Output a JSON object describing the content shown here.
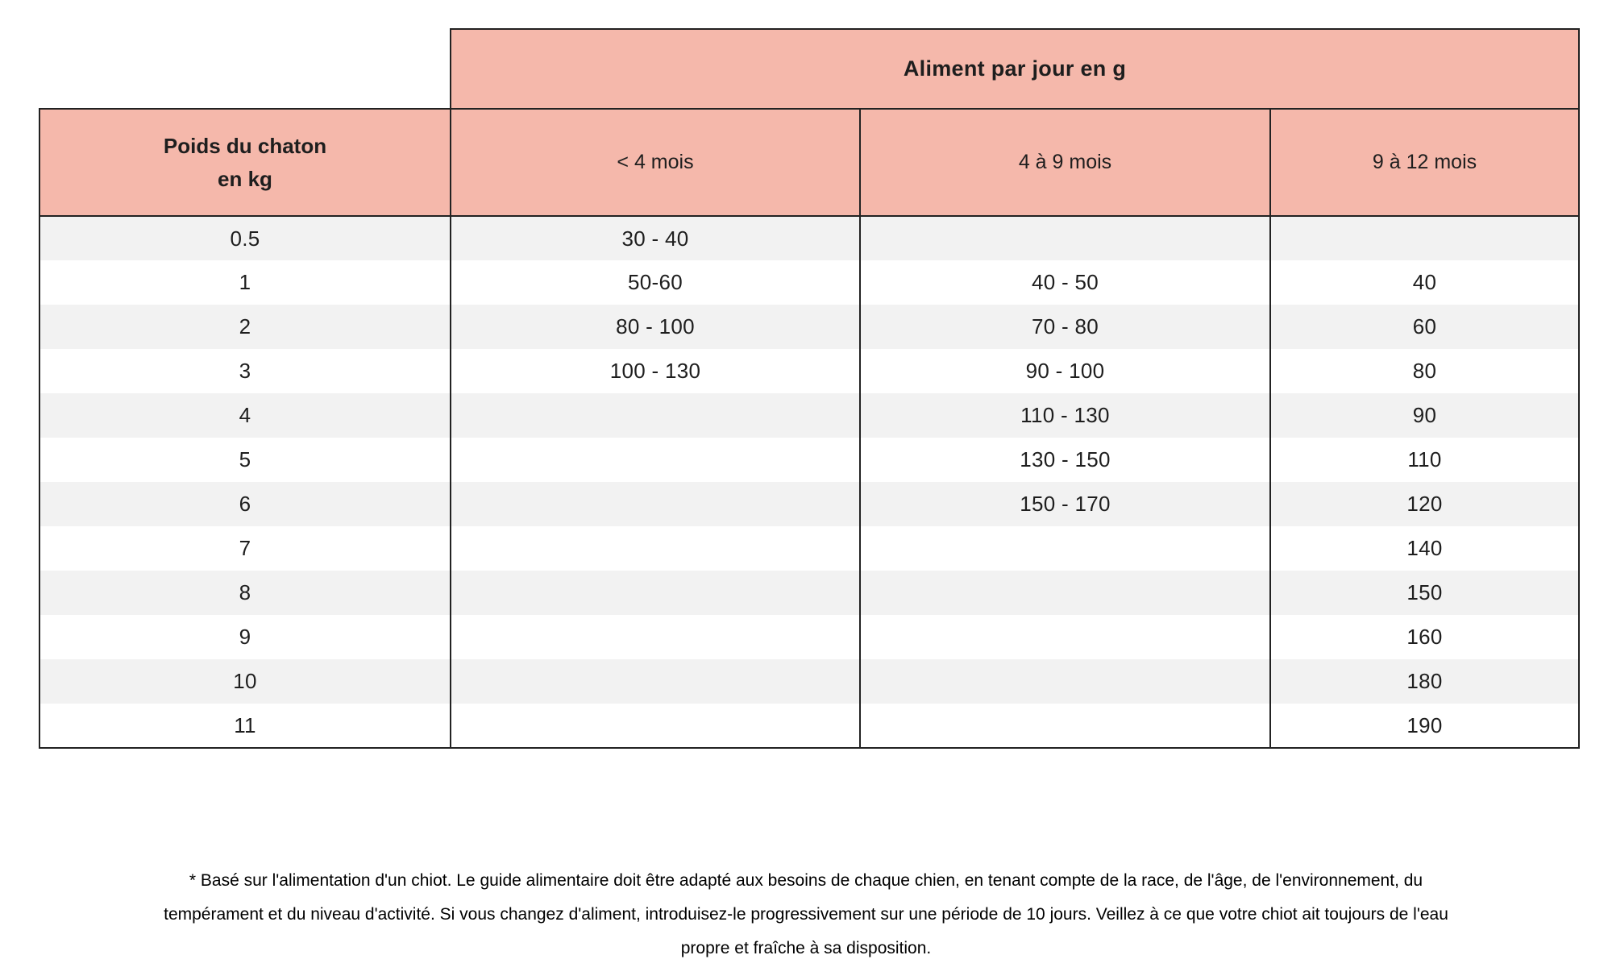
{
  "table": {
    "banner": "Aliment par jour en g",
    "weight_header": {
      "line1": "Poids du chaton",
      "line2": "en kg"
    },
    "columns": [
      "< 4 mois",
      "4 à 9 mois",
      "9 à 12 mois"
    ],
    "rows": [
      {
        "weight": "0.5",
        "m4": "30 - 40",
        "m4_9": "",
        "m9_12": ""
      },
      {
        "weight": "1",
        "m4": "50-60",
        "m4_9": "40 - 50",
        "m9_12": "40"
      },
      {
        "weight": "2",
        "m4": "80 - 100",
        "m4_9": "70 - 80",
        "m9_12": "60"
      },
      {
        "weight": "3",
        "m4": "100 - 130",
        "m4_9": "90 - 100",
        "m9_12": "80"
      },
      {
        "weight": "4",
        "m4": "",
        "m4_9": "110 - 130",
        "m9_12": "90"
      },
      {
        "weight": "5",
        "m4": "",
        "m4_9": "130 - 150",
        "m9_12": "110"
      },
      {
        "weight": "6",
        "m4": "",
        "m4_9": "150 - 170",
        "m9_12": "120"
      },
      {
        "weight": "7",
        "m4": "",
        "m4_9": "",
        "m9_12": "140"
      },
      {
        "weight": "8",
        "m4": "",
        "m4_9": "",
        "m9_12": "150"
      },
      {
        "weight": "9",
        "m4": "",
        "m4_9": "",
        "m9_12": "160"
      },
      {
        "weight": "10",
        "m4": "",
        "m4_9": "",
        "m9_12": "180"
      },
      {
        "weight": "11",
        "m4": "",
        "m4_9": "",
        "m9_12": "190"
      }
    ]
  },
  "footer": {
    "lines": [
      "* Basé sur l'alimentation d'un chiot. Le guide alimentaire doit être adapté aux besoins de chaque chien, en tenant compte de la race, de l'âge, de l'environnement, du",
      "tempérament et du niveau d'activité. Si vous changez d'aliment, introduisez-le progressivement sur une période de 10 jours. Veillez à ce que votre chiot ait toujours de l'eau",
      "propre et fraîche à sa disposition."
    ]
  },
  "colors": {
    "header_pink": "#f5b8ab",
    "row_stripe": "#f2f2f2",
    "border": "#222222"
  },
  "chart_data": {
    "type": "table",
    "title": "Aliment par jour en g",
    "columns": [
      "Poids du chaton en kg",
      "< 4 mois",
      "4 à 9 mois",
      "9 à 12 mois"
    ],
    "rows": [
      [
        "0.5",
        "30 - 40",
        "",
        ""
      ],
      [
        "1",
        "50-60",
        "40 - 50",
        "40"
      ],
      [
        "2",
        "80 - 100",
        "70 - 80",
        "60"
      ],
      [
        "3",
        "100 - 130",
        "90 - 100",
        "80"
      ],
      [
        "4",
        "",
        "110 - 130",
        "90"
      ],
      [
        "5",
        "",
        "130 - 150",
        "110"
      ],
      [
        "6",
        "",
        "150 - 170",
        "120"
      ],
      [
        "7",
        "",
        "",
        "140"
      ],
      [
        "8",
        "",
        "",
        "150"
      ],
      [
        "9",
        "",
        "",
        "160"
      ],
      [
        "10",
        "",
        "",
        "180"
      ],
      [
        "11",
        "",
        "",
        "190"
      ]
    ],
    "layout": "striped rows, pink headers, no horizontal inner borders"
  }
}
